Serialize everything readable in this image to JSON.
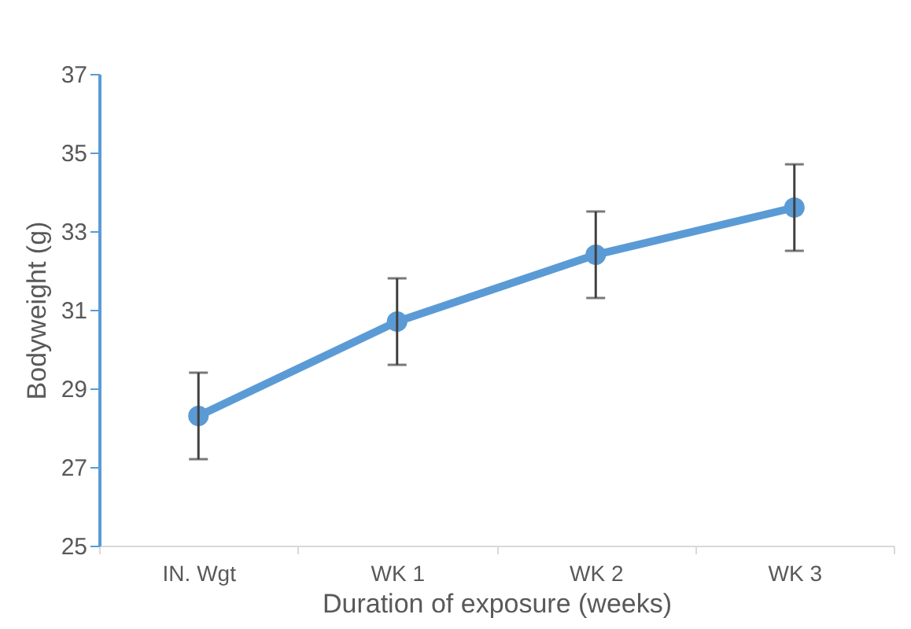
{
  "chart_data": {
    "type": "line",
    "xlabel": "Duration of exposure (weeks)",
    "ylabel": "Bodyweight (g)",
    "categories": [
      "IN. Wgt",
      "WK 1",
      "WK 2",
      "WK 3"
    ],
    "series": [
      {
        "color": "#5b9bd5",
        "values": [
          28.3,
          30.7,
          32.4,
          33.6
        ],
        "errors": [
          1.1,
          1.1,
          1.1,
          1.1
        ]
      }
    ],
    "ylim": [
      25,
      37
    ],
    "yticks": [
      25,
      27,
      29,
      31,
      33,
      35,
      37
    ],
    "marker": "circle",
    "grid": false,
    "legend": false
  }
}
